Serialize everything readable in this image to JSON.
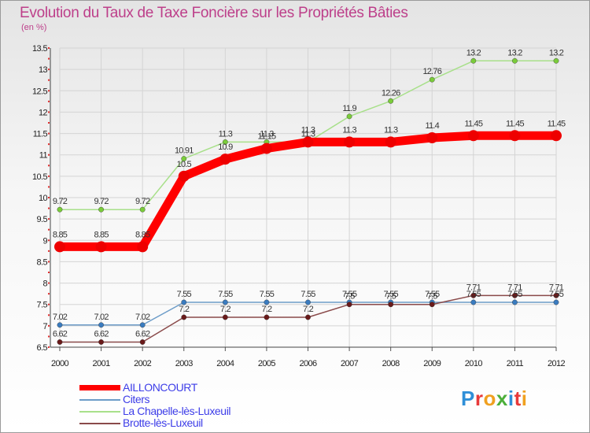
{
  "title": "Evolution du Taux de Taxe Foncière sur les Propriétés Bâties",
  "unit_label": "(en %)",
  "logo": {
    "text": "Proxiti",
    "colors": [
      "#2f8fd8",
      "#e83a3a",
      "#f0a020",
      "#4caf3a",
      "#2f8fd8",
      "#e83a3a",
      "#f0a020"
    ]
  },
  "chart_data": {
    "type": "line",
    "title": "Evolution du Taux de Taxe Foncière sur les Propriétés Bâties",
    "ylabel": "(en %)",
    "xlabel": "",
    "ylim": [
      6.5,
      13.5
    ],
    "yticks": [
      "6.5",
      "7",
      "7.5",
      "8",
      "8.5",
      "9",
      "9.5",
      "10",
      "10.5",
      "11",
      "11.5",
      "12",
      "12.5",
      "13",
      "13.5"
    ],
    "categories": [
      "2000",
      "2001",
      "2002",
      "2003",
      "2004",
      "2005",
      "2006",
      "2007",
      "2008",
      "2009",
      "2010",
      "2011",
      "2012"
    ],
    "grid": true,
    "legend_position": "bottom-left",
    "series": [
      {
        "name": "AILLONCOURT",
        "color": "#ff0000",
        "marker": "#ee0000",
        "values": [
          8.85,
          8.85,
          8.85,
          10.5,
          10.9,
          11.15,
          11.3,
          11.3,
          11.3,
          11.4,
          11.45,
          11.45,
          11.45
        ],
        "labels": [
          "8.85",
          "8.85",
          "8.85",
          "10.5",
          "10.9",
          "11.15",
          "11.3",
          "11.3",
          "11.3",
          "11.4",
          "11.45",
          "11.45",
          "11.45"
        ]
      },
      {
        "name": "Citers",
        "color": "#6c9cc8",
        "marker": "#3a7cc0",
        "values": [
          7.02,
          7.02,
          7.02,
          7.55,
          7.55,
          7.55,
          7.55,
          7.55,
          7.55,
          7.55,
          7.55,
          7.55,
          7.55
        ],
        "labels": [
          "7.02",
          "7.02",
          "7.02",
          "7.55",
          "7.55",
          "7.55",
          "7.55",
          "7.55",
          "7.55",
          "7.55",
          "7.55",
          "7.55",
          "7.55"
        ]
      },
      {
        "name": "La Chapelle-lès-Luxeuil",
        "color": "#a8e08a",
        "marker": "#7acc3a",
        "values": [
          9.72,
          9.72,
          9.72,
          10.91,
          11.3,
          11.3,
          11.3,
          11.9,
          12.26,
          12.76,
          13.2,
          13.2,
          13.2
        ],
        "labels": [
          "9.72",
          "9.72",
          "9.72",
          "10.91",
          "11.3",
          "11.3",
          "11.3",
          "11.9",
          "12.26",
          "12.76",
          "13.2",
          "13.2",
          "13.2"
        ]
      },
      {
        "name": "Brotte-lès-Luxeuil",
        "color": "#8a4a4a",
        "marker": "#6a1a1a",
        "values": [
          6.62,
          6.62,
          6.62,
          7.2,
          7.2,
          7.2,
          7.2,
          7.5,
          7.5,
          7.5,
          7.71,
          7.71,
          7.71
        ],
        "labels": [
          "6.62",
          "6.62",
          "6.62",
          "7.2",
          "7.2",
          "7.2",
          "7.2",
          "7.5",
          "7.5",
          "7.5",
          "7.71",
          "7.71",
          "7.71"
        ]
      }
    ]
  }
}
